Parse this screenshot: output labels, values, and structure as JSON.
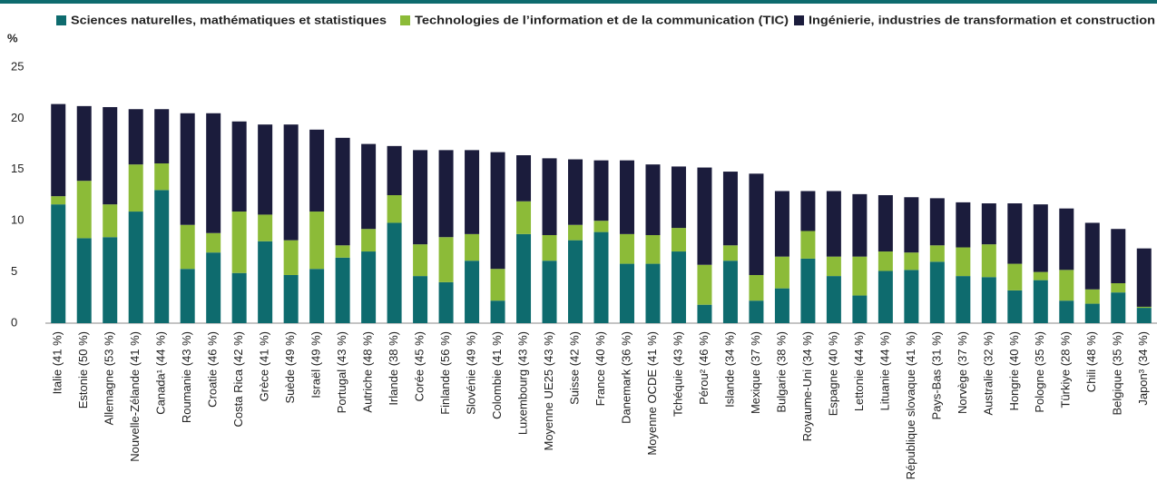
{
  "chart_data": {
    "type": "bar",
    "stacked": true,
    "y_label": "%",
    "legend": "top",
    "grid": false,
    "categories": [
      "Italie (41 %)",
      "Estonie (50 %)",
      "Allemagne (53 %)",
      "Nouvelle-Zélande (41 %)",
      "Canada¹ (44 %)",
      "Roumanie (43 %)",
      "Croatie (46 %)",
      "Costa Rica (42 %)",
      "Grèce (41 %)",
      "Suède (49 %)",
      "Israël (49 %)",
      "Portugal (43 %)",
      "Autriche (48 %)",
      "Irlande (38 %)",
      "Corée (45 %)",
      "Finlande (56 %)",
      "Slovénie (49 %)",
      "Colombie (41 %)",
      "Luxembourg (43 %)",
      "Moyenne UE25 (43 %)",
      "Suisse (42 %)",
      "France (40 %)",
      "Danemark (36 %)",
      "Moyenne OCDE (41 %)",
      "Tchéquie (43 %)",
      "Pérou² (46 %)",
      "Islande (34 %)",
      "Mexique (37 %)",
      "Bulgarie (38 %)",
      "Royaume-Uni (34 %)",
      "Espagne (40 %)",
      "Lettonie (44 %)",
      "Lituanie (44 %)",
      "République slovaque (41 %)",
      "Pays-Bas (31 %)",
      "Norvège (37 %)",
      "Australie (32 %)",
      "Hongrie (40 %)",
      "Pologne (35 %)",
      "Türkiye (28 %)",
      "Chili (48 %)",
      "Belgique (35 %)",
      "Japon³ (34 %)"
    ],
    "series": [
      {
        "name": "Sciences naturelles, mathématiques et statistiques",
        "color": "#0e6b6e",
        "values": [
          11.6,
          8.3,
          8.4,
          10.9,
          13.0,
          5.3,
          6.9,
          4.9,
          8.0,
          4.7,
          5.3,
          6.4,
          7.0,
          9.8,
          4.6,
          4.0,
          6.1,
          2.2,
          8.7,
          6.1,
          8.1,
          8.9,
          5.8,
          5.8,
          7.0,
          1.8,
          6.1,
          2.2,
          3.4,
          6.3,
          4.6,
          2.7,
          5.1,
          5.2,
          6.0,
          4.6,
          4.5,
          3.2,
          4.2,
          2.2,
          1.9,
          3.0,
          1.5
        ]
      },
      {
        "name": "Technologies de l’information et de la communication (TIC)",
        "color": "#8cbb38",
        "values": [
          0.8,
          5.6,
          3.2,
          4.6,
          2.6,
          4.3,
          1.9,
          6.0,
          2.6,
          3.4,
          5.6,
          1.2,
          2.2,
          2.7,
          3.1,
          4.4,
          2.6,
          3.1,
          3.2,
          2.5,
          1.5,
          1.1,
          2.9,
          2.8,
          2.3,
          3.9,
          1.5,
          2.5,
          3.1,
          2.7,
          1.9,
          3.8,
          1.9,
          1.7,
          1.6,
          2.8,
          3.2,
          2.6,
          0.8,
          3.0,
          1.4,
          0.9,
          0.1
        ]
      },
      {
        "name": "Ingénierie, industries de transformation et construction",
        "color": "#1b1c3c",
        "values": [
          9.0,
          7.3,
          9.5,
          5.4,
          5.3,
          10.9,
          11.7,
          8.8,
          8.8,
          11.3,
          8.0,
          10.5,
          8.3,
          4.8,
          9.2,
          8.5,
          8.2,
          11.4,
          4.5,
          7.5,
          6.4,
          5.9,
          7.2,
          6.9,
          6.0,
          9.5,
          7.2,
          9.9,
          6.4,
          3.9,
          6.4,
          6.1,
          5.5,
          5.4,
          4.6,
          4.4,
          4.0,
          5.9,
          6.6,
          6.0,
          6.5,
          5.3,
          5.7
        ]
      }
    ],
    "ylim": [
      0,
      25
    ],
    "yticks": [
      0,
      5,
      10,
      15,
      20,
      25
    ]
  }
}
